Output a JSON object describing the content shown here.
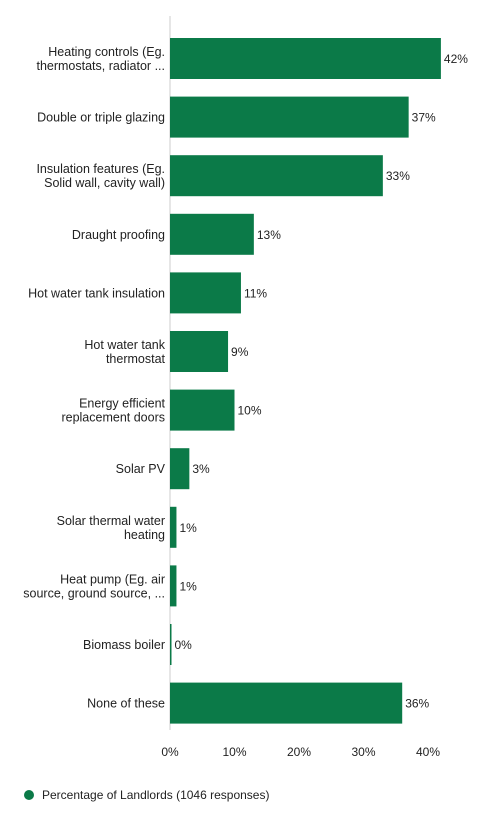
{
  "chart_data": {
    "type": "bar",
    "orientation": "horizontal",
    "categories": [
      [
        "Heating controls (Eg.",
        "thermostats, radiator ..."
      ],
      [
        "Double or triple glazing"
      ],
      [
        "Insulation features (Eg.",
        "Solid wall, cavity wall)"
      ],
      [
        "Draught proofing"
      ],
      [
        "Hot water tank insulation"
      ],
      [
        "Hot water tank",
        "thermostat"
      ],
      [
        "Energy efficient",
        "replacement doors"
      ],
      [
        "Solar PV"
      ],
      [
        "Solar thermal water",
        "heating"
      ],
      [
        "Heat pump (Eg. air",
        "source, ground source, ..."
      ],
      [
        "Biomass boiler"
      ],
      [
        "None of these"
      ]
    ],
    "series": [
      {
        "name": "Percentage of Landlords (1046 responses)",
        "values": [
          42,
          37,
          33,
          13,
          11,
          9,
          10,
          3,
          1,
          1,
          0,
          36
        ],
        "labels": [
          "42%",
          "37%",
          "33%",
          "13%",
          "11%",
          "9%",
          "10%",
          "3%",
          "1%",
          "1%",
          "0%",
          "36%"
        ]
      }
    ],
    "xlim": [
      0,
      42
    ],
    "x_ticks": [
      0,
      10,
      20,
      30,
      40
    ],
    "x_tick_labels": [
      "0%",
      "10%",
      "20%",
      "30%",
      "40%"
    ],
    "legend_position": "bottom-left",
    "grid": false,
    "colors": {
      "bar": "#0b7a48",
      "axis": "#cccccc",
      "text": "#222222"
    }
  },
  "legend": {
    "label": "Percentage of Landlords (1046 responses)"
  }
}
